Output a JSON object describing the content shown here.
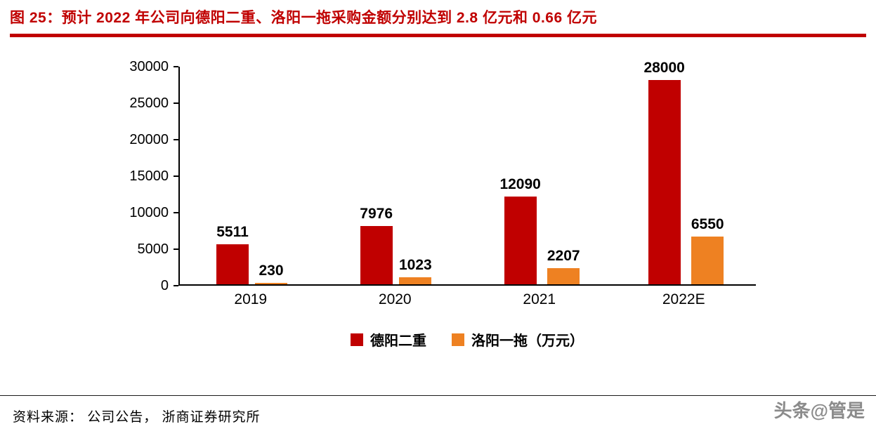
{
  "header": {
    "title": "图 25：预计 2022 年公司向德阳二重、洛阳一拖采购金额分别达到 2.8 亿元和 0.66 亿元"
  },
  "chart_data": {
    "type": "bar",
    "title": "",
    "categories": [
      "2019",
      "2020",
      "2021",
      "2022E"
    ],
    "series": [
      {
        "key": "deyang-erzhong",
        "name": "德阳二重",
        "color": "#c00000",
        "values": [
          5511,
          7976,
          12090,
          28000
        ]
      },
      {
        "key": "luoyang-yto",
        "name": "洛阳一拖（万元）",
        "color": "#ee8122",
        "values": [
          230,
          1023,
          2207,
          6550
        ]
      }
    ],
    "xlabel": "",
    "ylabel": "",
    "ylim": [
      0,
      30000
    ],
    "yticks": [
      0,
      5000,
      10000,
      15000,
      20000,
      25000,
      30000
    ],
    "grid": false,
    "legend_position": "bottom",
    "value_labels": true
  },
  "footer": {
    "source": "资料来源： 公司公告， 浙商证券研究所",
    "watermark": "头条@管是"
  },
  "colors": {
    "accent_red": "#c00000",
    "accent_orange": "#ee8122",
    "watermark_gray": "#8b8b8b"
  }
}
